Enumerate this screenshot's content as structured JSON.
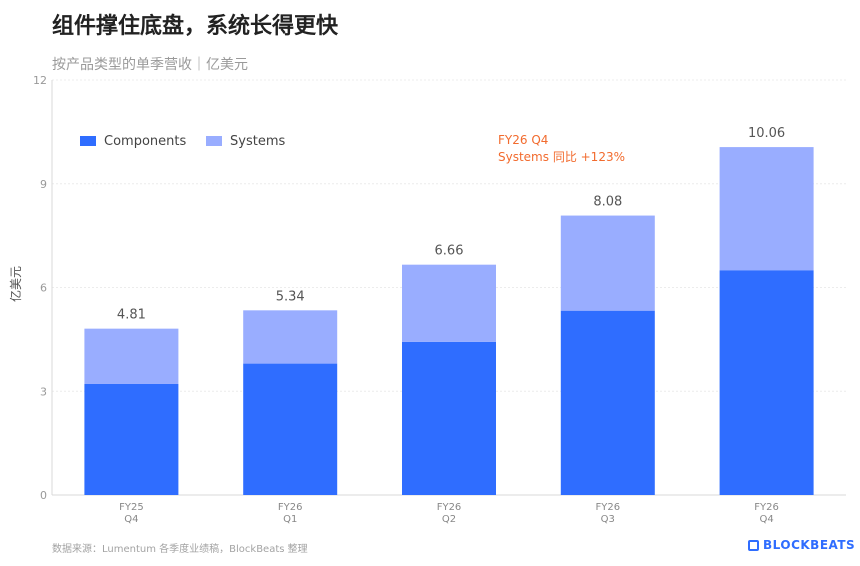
{
  "title": "组件撑住底盘，系统长得更快",
  "subtitle": "按产品类型的单季营收｜亿美元",
  "source": "数据来源：Lumentum 各季度业绩稿，BlockBeats 整理",
  "brand": "BLOCKBEATS",
  "chart_data": {
    "type": "bar",
    "stacked": true,
    "categories": [
      [
        "FY25",
        "Q4"
      ],
      [
        "FY26",
        "Q1"
      ],
      [
        "FY26",
        "Q2"
      ],
      [
        "FY26",
        "Q3"
      ],
      [
        "FY26",
        "Q4"
      ]
    ],
    "series": [
      {
        "name": "Components",
        "values": [
          3.21,
          3.8,
          4.43,
          5.33,
          6.5
        ],
        "color": "#2f6dff"
      },
      {
        "name": "Systems",
        "values": [
          1.6,
          1.54,
          2.23,
          2.75,
          3.56
        ],
        "color": "#99adff"
      }
    ],
    "totals": [
      "4.81",
      "5.34",
      "6.66",
      "8.08",
      "10.06"
    ],
    "ylabel": "亿美元",
    "ylim": [
      0,
      12
    ],
    "yticks": [
      "0",
      "3",
      "6",
      "9",
      "12"
    ],
    "grid": true,
    "legend_position": "top-left",
    "annotation": {
      "lines": [
        "FY26 Q4",
        "Systems 同比 +123%"
      ],
      "color": "#f26b2e"
    }
  }
}
